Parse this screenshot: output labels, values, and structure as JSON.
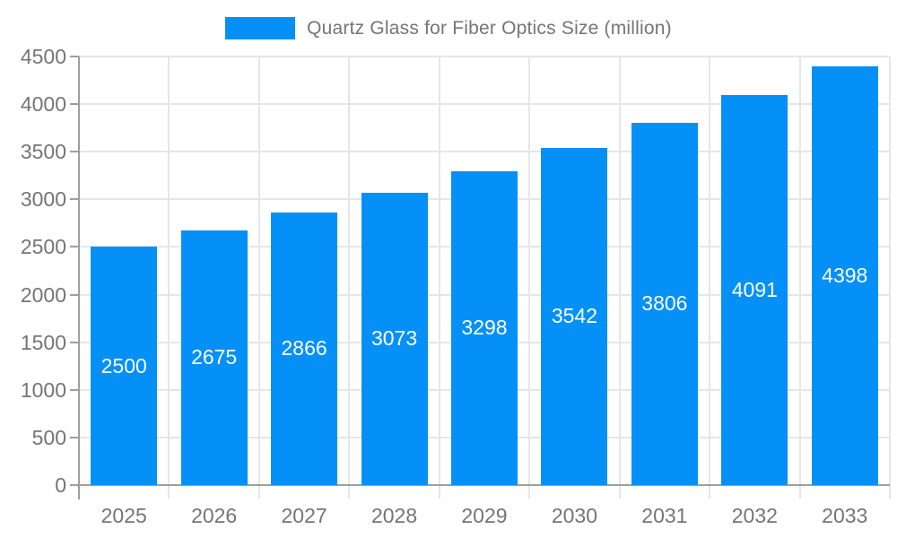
{
  "chart_data": {
    "type": "bar",
    "title": "Quartz Glass for Fiber Optics Size (million)",
    "categories": [
      "2025",
      "2026",
      "2027",
      "2028",
      "2029",
      "2030",
      "2031",
      "2032",
      "2033"
    ],
    "values": [
      2500,
      2675,
      2866,
      3073,
      3298,
      3542,
      3806,
      4091,
      4398
    ],
    "xlabel": "",
    "ylabel": "",
    "ylim": [
      0,
      4500
    ],
    "y_ticks": [
      0,
      500,
      1000,
      1500,
      2000,
      2500,
      3000,
      3500,
      4000,
      4500
    ],
    "grid": true,
    "legend_position": "top-center",
    "bar_color": "#0590f8",
    "bar_label_color": "#ffffff",
    "axis_text_color": "#757575",
    "grid_color": "#e6e6e6",
    "axis_line_color": "#9e9e9e"
  }
}
